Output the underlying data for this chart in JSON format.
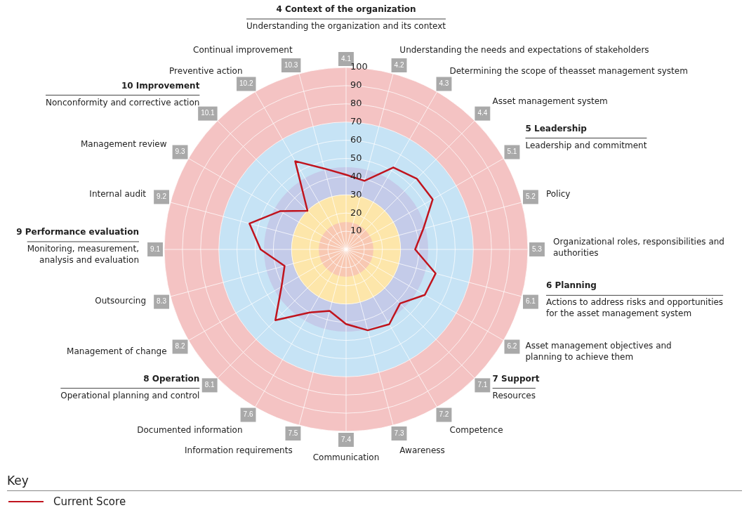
{
  "chart_data": {
    "type": "radar",
    "categories": [
      "4.1",
      "4.2",
      "4.3",
      "4.4",
      "5.1",
      "5.2",
      "5.3",
      "6.1",
      "6.2",
      "7.1",
      "7.2",
      "7.3",
      "7.4",
      "7.5",
      "7.6",
      "8.1",
      "8.2",
      "8.3",
      "9.1",
      "9.2",
      "9.3",
      "10.1",
      "10.2",
      "10.3"
    ],
    "series": [
      {
        "name": "Current Score",
        "color": "#c0141e",
        "values": [
          41,
          39,
          52,
          55,
          55,
          44,
          38,
          51,
          50,
          42,
          47.5,
          46,
          41,
          35,
          40,
          55,
          41,
          35,
          47,
          55,
          42,
          30,
          56,
          46
        ]
      }
    ],
    "ylim": [
      0,
      100
    ],
    "yticks": [
      10,
      20,
      30,
      40,
      50,
      60,
      70,
      80,
      90,
      100
    ],
    "grid": true,
    "marker": "none",
    "legend": "bottom left",
    "legend_title": "Key",
    "annotations": [
      "Understanding the organization and its context",
      "Understanding the needs and expectations of stakeholders",
      "Determining the scope of theasset management system",
      "Asset management system",
      "Leadership and commitment",
      "Policy",
      "Organizational roles, responsibilities and authorities",
      "Actions to address risks and opportunities for the asset management system",
      "Asset management objectives and planning to achieve them",
      "Resources",
      "Competence",
      "Awareness",
      "Communication",
      "Information requirements",
      "Documented information",
      "Operational planning and control",
      "Management of change",
      "Outsourcing",
      "Monitoring, measurement, analysis and evaluation",
      "Internal audit",
      "Management review",
      "Nonconformity and corrective action",
      "Preventive action",
      "Continual improvement",
      "4 Context of the organization",
      "5 Leadership",
      "6 Planning",
      "7 Support",
      "8 Operation",
      "9 Performance evaluation",
      "10 Improvement"
    ]
  }
}
